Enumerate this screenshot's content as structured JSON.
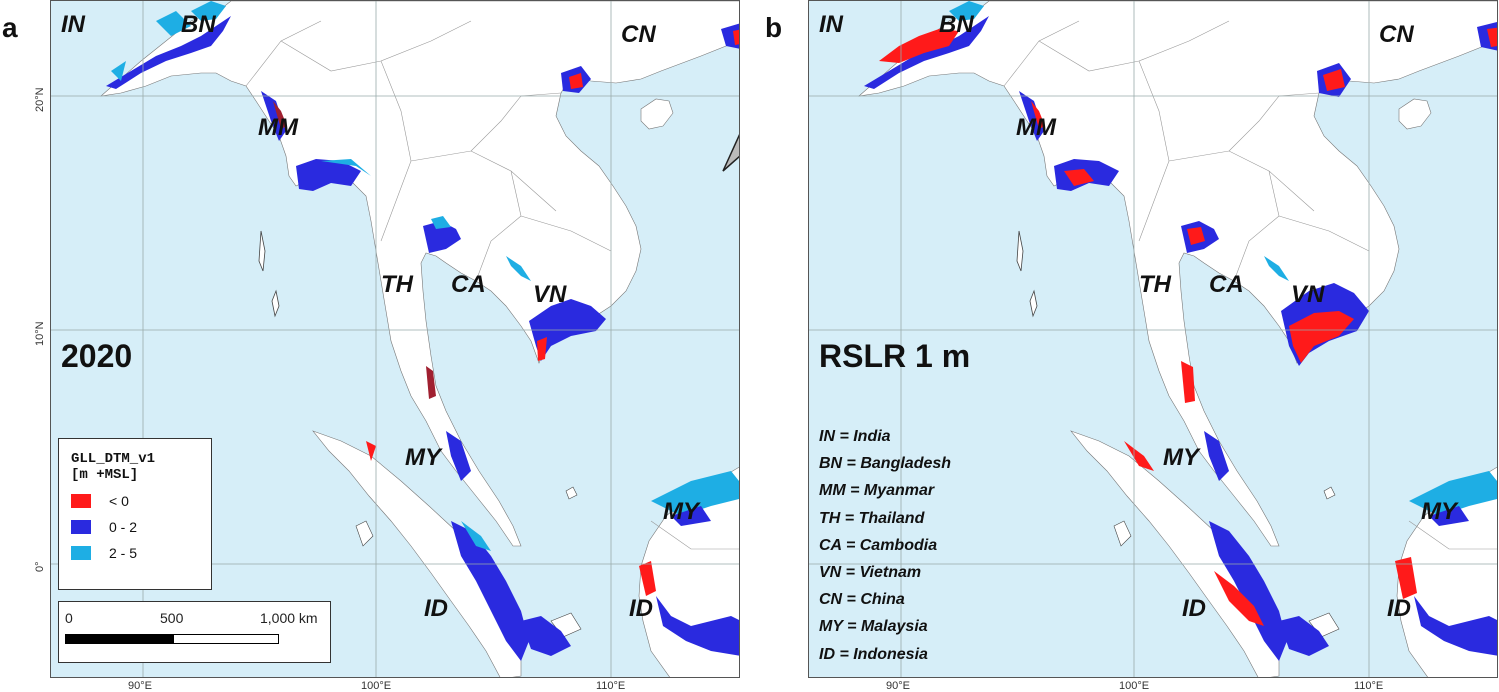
{
  "panels": [
    {
      "letter": "a",
      "main_label": "2020",
      "country_labels": {
        "in": "IN",
        "bn": "BN",
        "mm": "MM",
        "th": "TH",
        "ca": "CA",
        "vn": "VN",
        "cn": "CN",
        "my1": "MY",
        "my2": "MY",
        "id1": "ID",
        "id2": "ID"
      },
      "longitudes": [
        "90°E",
        "100°E",
        "110°E"
      ],
      "latitudes": [
        "20°N",
        "10°N",
        "0°"
      ]
    },
    {
      "letter": "b",
      "main_label": "RSLR 1 m",
      "country_labels": {
        "in": "IN",
        "bn": "BN",
        "mm": "MM",
        "th": "TH",
        "ca": "CA",
        "vn": "VN",
        "cn": "CN",
        "my1": "MY",
        "my2": "MY",
        "id1": "ID",
        "id2": "ID"
      },
      "longitudes": [
        "90°E",
        "100°E",
        "110°E"
      ]
    }
  ],
  "legend": {
    "title_line1": "GLL_DTM_v1",
    "title_line2": "[m +MSL]",
    "classes": [
      {
        "label": "< 0",
        "color": "#ff1a1a"
      },
      {
        "label": "0 - 2",
        "color": "#2a2adf"
      },
      {
        "label": "2 - 5",
        "color": "#1eaee4"
      }
    ]
  },
  "scalebar": {
    "ticks": [
      "0",
      "500",
      "1,000 km"
    ]
  },
  "abbreviations": [
    "IN = India",
    "BN = Bangladesh",
    "MM = Myanmar",
    "TH = Thailand",
    "CA = Cambodia",
    "VN = Vietnam",
    "CN = China",
    "MY = Malaysia",
    "ID = Indonesia"
  ],
  "colors": {
    "sea": "#d6eef8",
    "land": "#ffffff",
    "below_zero": "#ff1a1a",
    "zero_two": "#2a2adf",
    "two_five": "#1eaee4"
  }
}
